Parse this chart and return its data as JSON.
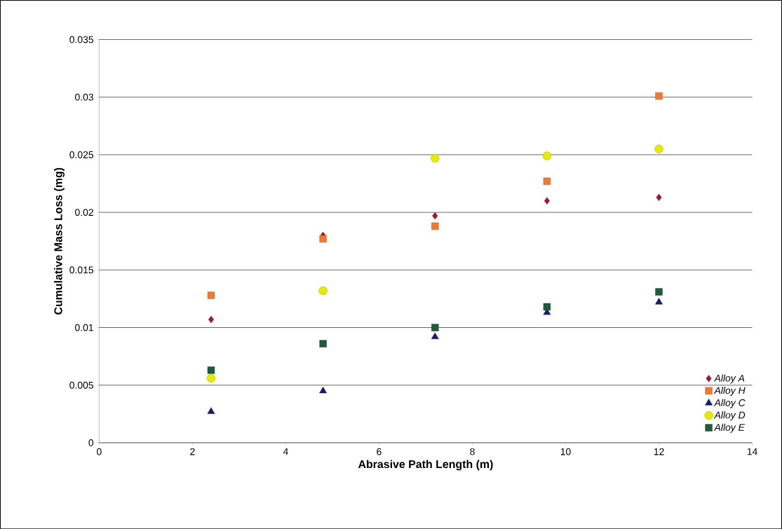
{
  "chart_data": {
    "type": "scatter",
    "xlabel": "Abrasive Path Length (m)",
    "ylabel": "Cumulative Mass Loss (mg)",
    "x": [
      2.4,
      4.8,
      7.2,
      9.6,
      12
    ],
    "series": [
      {
        "name": "Alloy A",
        "color": "#a0182a",
        "marker": "diamond",
        "values": [
          0.0107,
          0.018,
          0.0197,
          0.021,
          0.0213
        ]
      },
      {
        "name": "Alloy H",
        "color": "#f07830",
        "marker": "square",
        "values": [
          0.0128,
          0.0177,
          0.0188,
          0.0227,
          0.0301
        ]
      },
      {
        "name": "Alloy C",
        "color": "#1a1a70",
        "marker": "triangle",
        "values": [
          0.0027,
          0.0045,
          0.0092,
          0.0113,
          0.0122
        ]
      },
      {
        "name": "Alloy D",
        "color": "#e8e800",
        "marker": "circle",
        "values": [
          0.0056,
          0.0132,
          0.0247,
          0.0249,
          0.0255
        ]
      },
      {
        "name": "Alloy E",
        "color": "#1e5a3c",
        "marker": "square",
        "values": [
          0.0063,
          0.0086,
          0.01,
          0.0118,
          0.0131
        ]
      }
    ],
    "xlim": [
      0,
      14
    ],
    "xticks": [
      0,
      2,
      4,
      6,
      8,
      10,
      12,
      14
    ],
    "ylim": [
      0,
      0.035
    ],
    "yticks": [
      0,
      0.005,
      0.01,
      0.015,
      0.02,
      0.025,
      0.03,
      0.035
    ],
    "grid": "y",
    "legend": "bottom right"
  }
}
